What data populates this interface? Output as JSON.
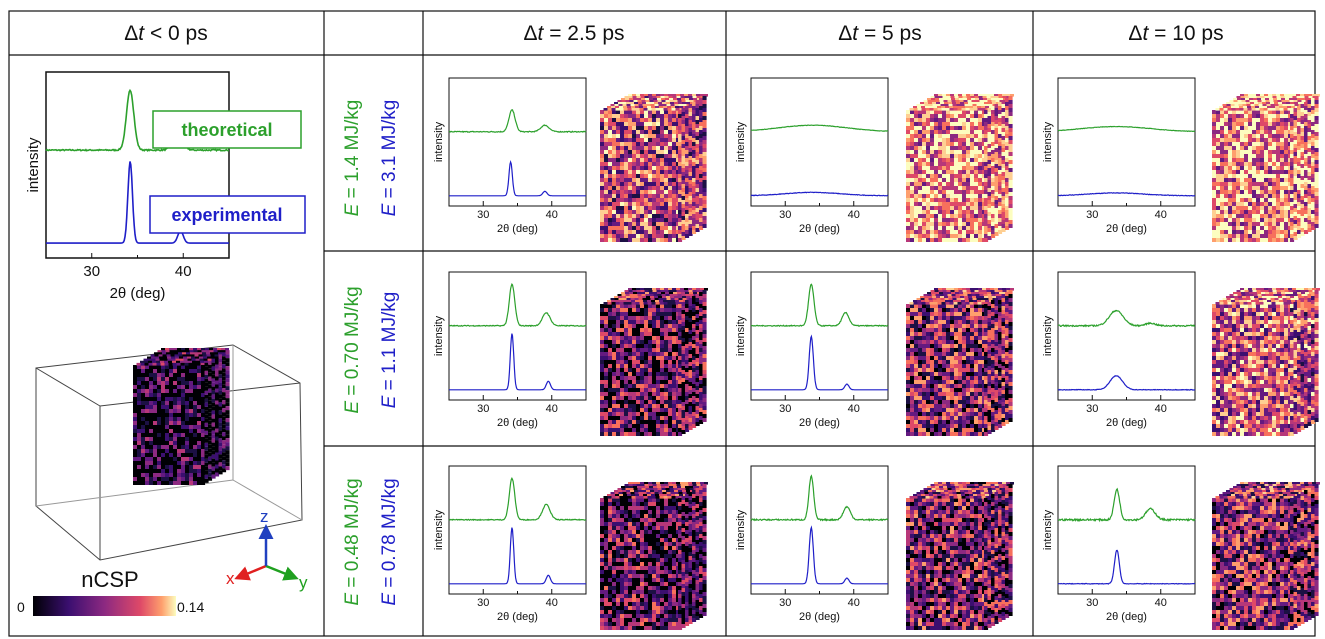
{
  "header": {
    "col0": {
      "prefix": "Δ",
      "var": "t",
      "suffix": " < 0 ps"
    },
    "cols": [
      {
        "prefix": "Δ",
        "var": "t",
        "suffix": " = 2.5 ps"
      },
      {
        "prefix": "Δ",
        "var": "t",
        "suffix": " = 5 ps"
      },
      {
        "prefix": "Δ",
        "var": "t",
        "suffix": " = 10 ps"
      }
    ]
  },
  "rows": [
    {
      "green": {
        "var": "E",
        "text": " = 1.4 MJ/kg"
      },
      "blue": {
        "var": "E",
        "text": " = 3.1 MJ/kg"
      }
    },
    {
      "green": {
        "var": "E",
        "text": " = 0.70 MJ/kg"
      },
      "blue": {
        "var": "E",
        "text": " = 1.1 MJ/kg"
      }
    },
    {
      "green": {
        "var": "E",
        "text": " = 0.48 MJ/kg"
      },
      "blue": {
        "var": "E",
        "text": " = 0.78 MJ/kg"
      }
    }
  ],
  "plot": {
    "xlabel": "2θ (deg)",
    "ylabel": "intensity",
    "xticks": [
      "30",
      "40"
    ],
    "xlim": [
      25,
      45
    ]
  },
  "legend": {
    "theoretical": "theoretical",
    "experimental": "experimental"
  },
  "colorbar": {
    "label": "nCSP",
    "min": "0",
    "max": "0.14"
  },
  "axes": {
    "x": "x",
    "y": "y",
    "z": "z"
  },
  "colors": {
    "theoretical": "#2ca02c",
    "experimental": "#1f1fc8",
    "x_axis": "#e02020",
    "y_axis": "#20a020",
    "z_axis": "#2040c0"
  },
  "chart_data": [
    {
      "type": "line",
      "panel": "dt<0",
      "series": [
        {
          "name": "theoretical",
          "peaks": [
            [
              34.2,
              0.95,
              0.4
            ],
            [
              39.4,
              0.33,
              0.5
            ]
          ],
          "noise": 0.02
        },
        {
          "name": "experimental",
          "peaks": [
            [
              34.2,
              1.0,
              0.25
            ],
            [
              39.7,
              0.15,
              0.3
            ]
          ],
          "noise": 0.0
        }
      ]
    },
    {
      "type": "line",
      "panel": "row1-dt2.5",
      "series": [
        {
          "name": "theoretical",
          "peaks": [
            [
              34.2,
              0.5,
              0.45
            ],
            [
              39.0,
              0.15,
              0.6
            ]
          ],
          "noise": 0.02
        },
        {
          "name": "experimental",
          "peaks": [
            [
              34.0,
              0.6,
              0.25
            ],
            [
              39.0,
              0.08,
              0.3
            ]
          ],
          "noise": 0.0
        }
      ]
    },
    {
      "type": "line",
      "panel": "row1-dt5",
      "series": [
        {
          "name": "theoretical",
          "peaks": [
            [
              34.0,
              0.15,
              5.0
            ]
          ],
          "noise": 0.01
        },
        {
          "name": "experimental",
          "peaks": [
            [
              34.0,
              0.06,
              4.0
            ]
          ],
          "noise": 0.01
        }
      ]
    },
    {
      "type": "line",
      "panel": "row1-dt10",
      "series": [
        {
          "name": "theoretical",
          "peaks": [
            [
              33.5,
              0.12,
              5.0
            ]
          ],
          "noise": 0.01
        },
        {
          "name": "experimental",
          "peaks": [
            [
              33.5,
              0.05,
              4.0
            ]
          ],
          "noise": 0.01
        }
      ]
    },
    {
      "type": "line",
      "panel": "row2-dt2.5",
      "series": [
        {
          "name": "theoretical",
          "peaks": [
            [
              34.2,
              0.95,
              0.4
            ],
            [
              39.2,
              0.3,
              0.55
            ]
          ],
          "noise": 0.02
        },
        {
          "name": "experimental",
          "peaks": [
            [
              34.2,
              1.0,
              0.25
            ],
            [
              39.5,
              0.15,
              0.3
            ]
          ],
          "noise": 0.0
        }
      ]
    },
    {
      "type": "line",
      "panel": "row2-dt5",
      "series": [
        {
          "name": "theoretical",
          "peaks": [
            [
              33.8,
              0.95,
              0.4
            ],
            [
              38.8,
              0.3,
              0.5
            ]
          ],
          "noise": 0.02
        },
        {
          "name": "experimental",
          "peaks": [
            [
              33.8,
              0.95,
              0.3
            ],
            [
              39.0,
              0.1,
              0.3
            ]
          ],
          "noise": 0.0
        }
      ]
    },
    {
      "type": "line",
      "panel": "row2-dt10",
      "series": [
        {
          "name": "theoretical",
          "peaks": [
            [
              33.5,
              0.35,
              1.0
            ],
            [
              38.5,
              0.06,
              0.7
            ]
          ],
          "noise": 0.03
        },
        {
          "name": "experimental",
          "peaks": [
            [
              33.5,
              0.25,
              0.9
            ]
          ],
          "noise": 0.01
        }
      ]
    },
    {
      "type": "line",
      "panel": "row3-dt2.5",
      "series": [
        {
          "name": "theoretical",
          "peaks": [
            [
              34.2,
              0.95,
              0.4
            ],
            [
              39.2,
              0.35,
              0.55
            ]
          ],
          "noise": 0.02
        },
        {
          "name": "experimental",
          "peaks": [
            [
              34.2,
              1.0,
              0.25
            ],
            [
              39.5,
              0.15,
              0.3
            ]
          ],
          "noise": 0.0
        }
      ]
    },
    {
      "type": "line",
      "panel": "row3-dt5",
      "series": [
        {
          "name": "theoretical",
          "peaks": [
            [
              33.8,
              1.0,
              0.35
            ],
            [
              39.0,
              0.3,
              0.5
            ]
          ],
          "noise": 0.03
        },
        {
          "name": "experimental",
          "peaks": [
            [
              33.8,
              1.0,
              0.3
            ],
            [
              39.0,
              0.1,
              0.3
            ]
          ],
          "noise": 0.0
        }
      ]
    },
    {
      "type": "line",
      "panel": "row3-dt10",
      "series": [
        {
          "name": "theoretical",
          "peaks": [
            [
              33.6,
              0.7,
              0.4
            ],
            [
              38.5,
              0.25,
              0.7
            ]
          ],
          "noise": 0.04
        },
        {
          "name": "experimental",
          "peaks": [
            [
              33.6,
              0.6,
              0.35
            ]
          ],
          "noise": 0.01
        }
      ]
    }
  ]
}
